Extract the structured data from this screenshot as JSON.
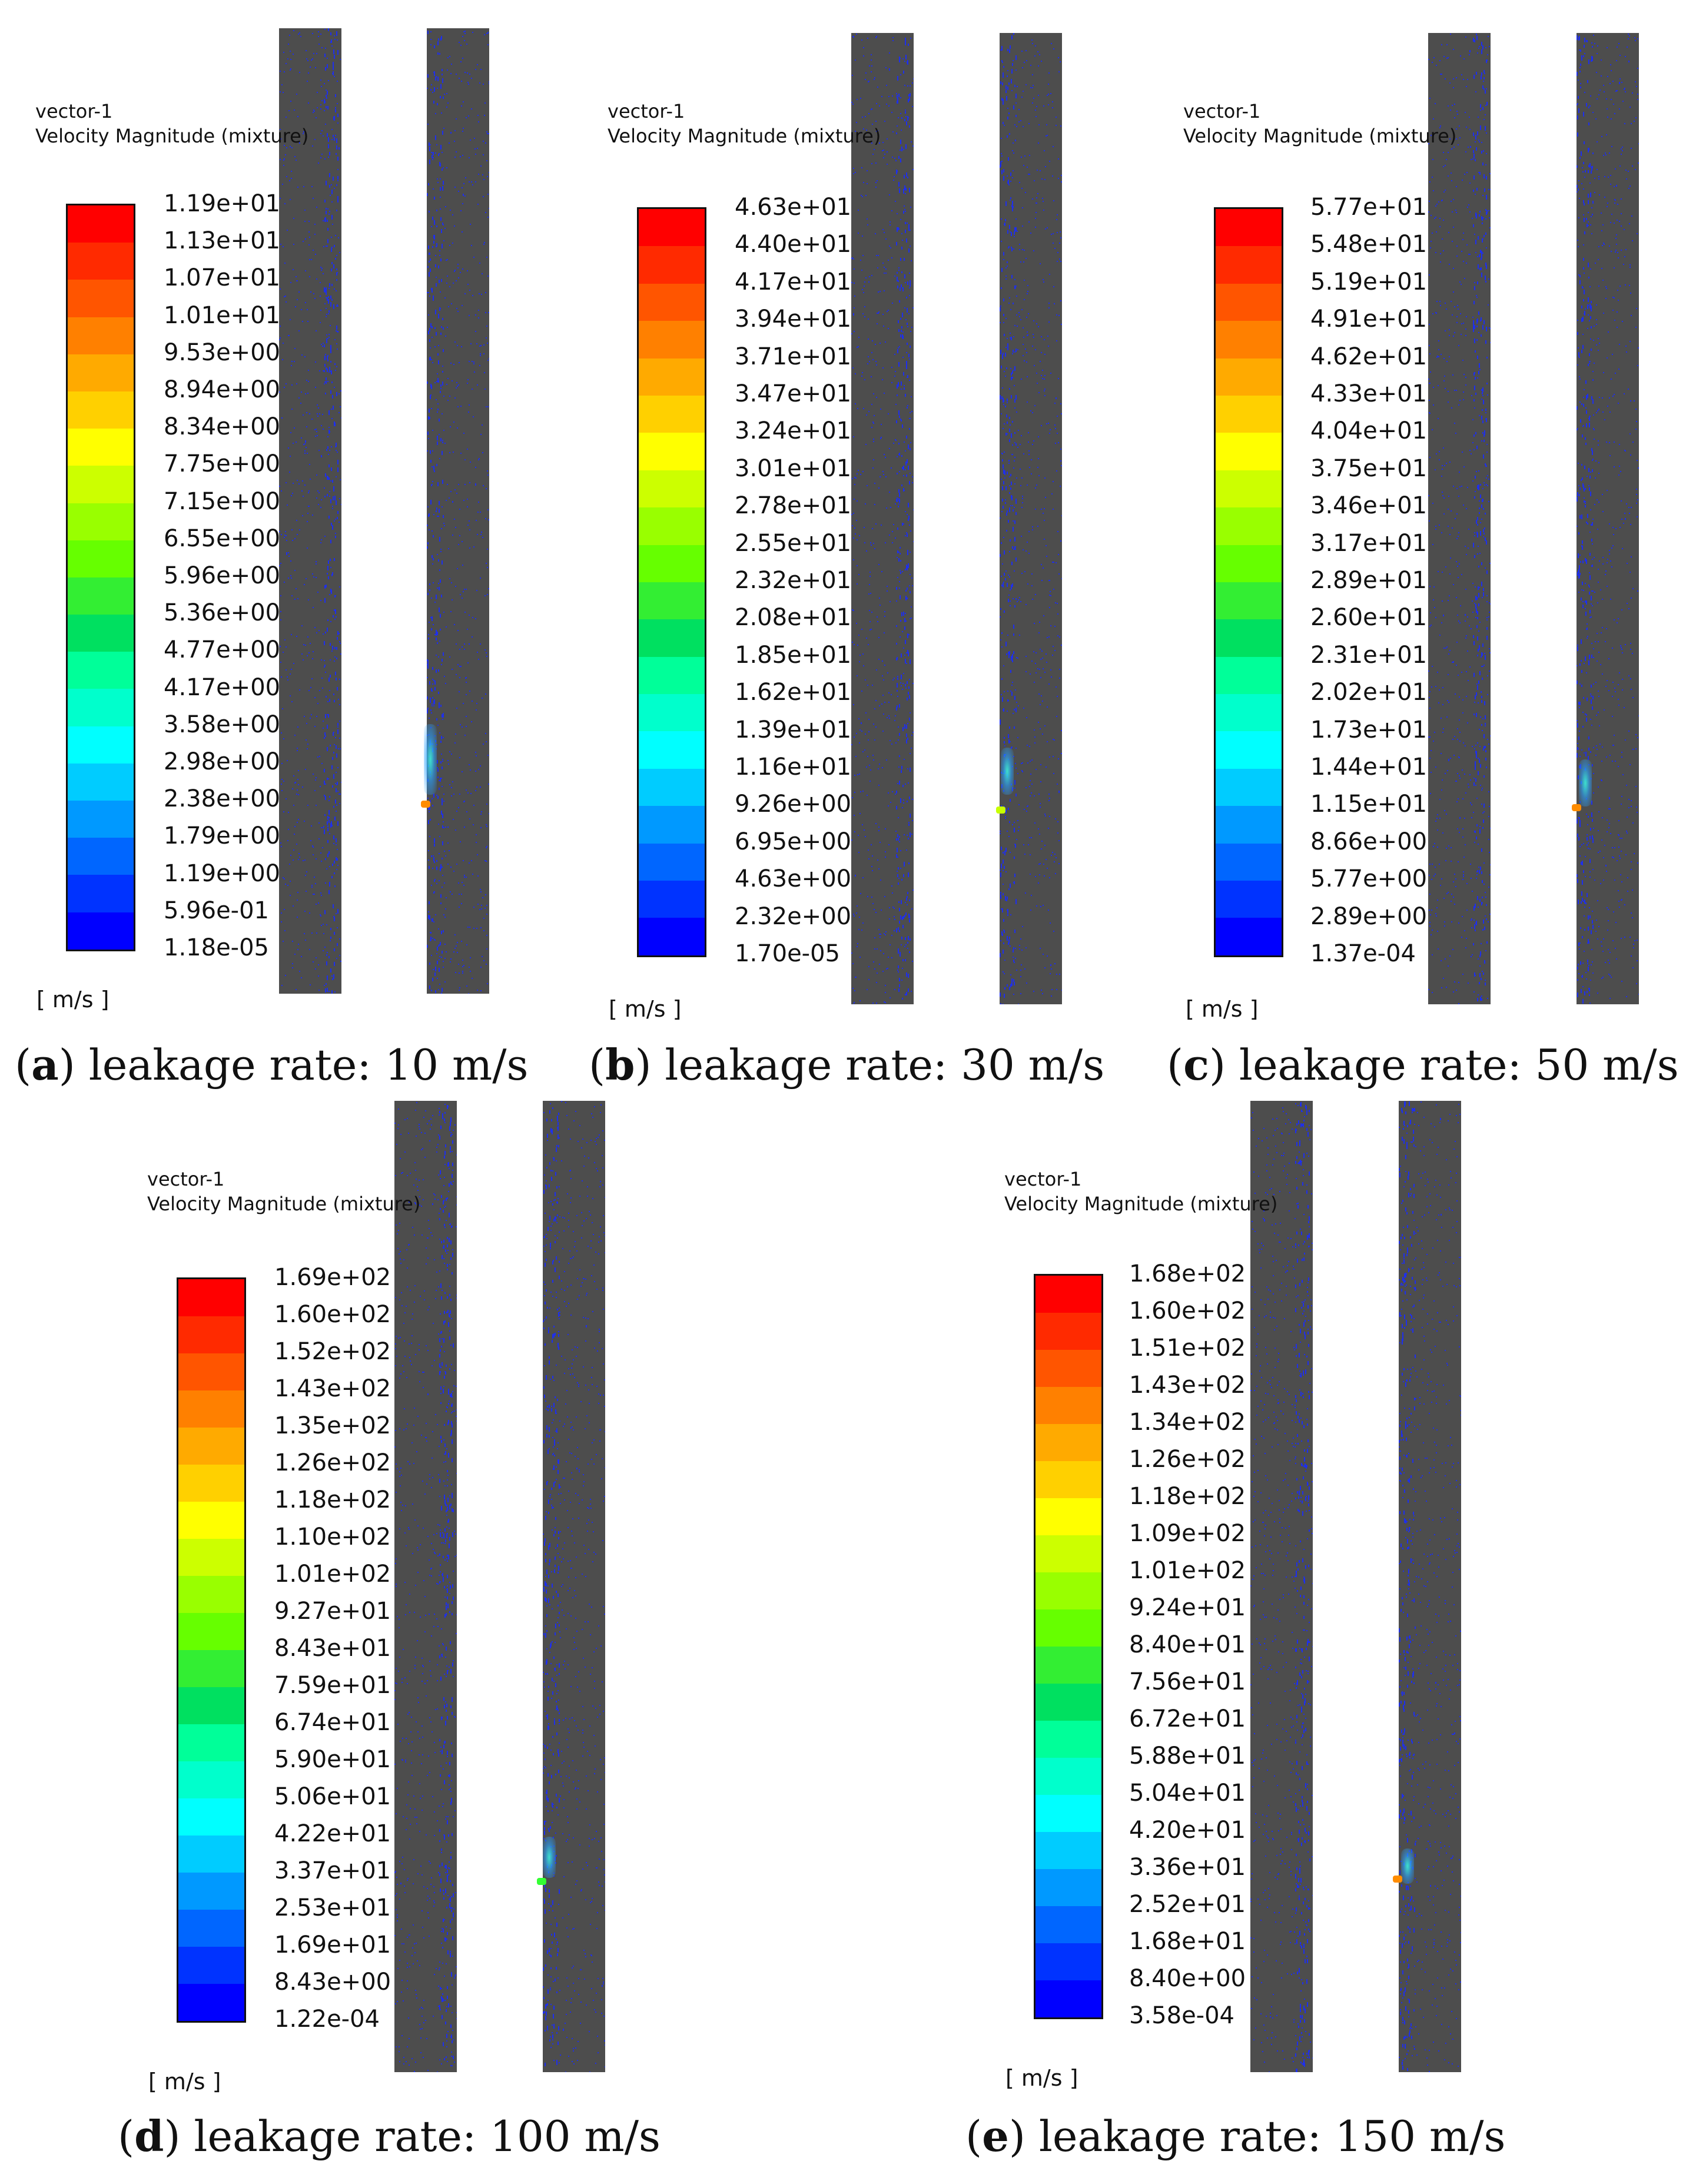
{
  "colors": {
    "wall": "#4d4d4d",
    "vector": "#1a2cff",
    "scale": [
      "#0000ff",
      "#0033ff",
      "#0066ff",
      "#0099ff",
      "#00ccff",
      "#00ffff",
      "#00ffcc",
      "#00ff99",
      "#00e060",
      "#33ee33",
      "#66ff00",
      "#99ff00",
      "#ccff00",
      "#ffff00",
      "#ffd000",
      "#ffaa00",
      "#ff8000",
      "#ff5500",
      "#ff2a00",
      "#ff0000"
    ]
  },
  "panels": [
    {
      "legend_title": "vector-1",
      "legend_subtitle": "Velocity Magnitude (mixture)",
      "unit": "[ m/s ]",
      "ticks": [
        "1.19e+01",
        "1.13e+01",
        "1.07e+01",
        "1.01e+01",
        "9.53e+00",
        "8.94e+00",
        "8.34e+00",
        "7.75e+00",
        "7.15e+00",
        "6.55e+00",
        "5.96e+00",
        "5.36e+00",
        "4.77e+00",
        "4.17e+00",
        "3.58e+00",
        "2.98e+00",
        "2.38e+00",
        "1.79e+00",
        "1.19e+00",
        "5.96e-01",
        "1.18e-05"
      ],
      "caption_letter": "a",
      "caption_text": "leakage rate: 10 m/s",
      "leak_marker_color": "#ff8c00"
    },
    {
      "legend_title": "vector-1",
      "legend_subtitle": "Velocity Magnitude (mixture)",
      "unit": "[ m/s ]",
      "ticks": [
        "4.63e+01",
        "4.40e+01",
        "4.17e+01",
        "3.94e+01",
        "3.71e+01",
        "3.47e+01",
        "3.24e+01",
        "3.01e+01",
        "2.78e+01",
        "2.55e+01",
        "2.32e+01",
        "2.08e+01",
        "1.85e+01",
        "1.62e+01",
        "1.39e+01",
        "1.16e+01",
        "9.26e+00",
        "6.95e+00",
        "4.63e+00",
        "2.32e+00",
        "1.70e-05"
      ],
      "caption_letter": "b",
      "caption_text": "leakage rate: 30 m/s",
      "leak_marker_color": "#c8ff00"
    },
    {
      "legend_title": "vector-1",
      "legend_subtitle": "Velocity Magnitude (mixture)",
      "unit": "[ m/s ]",
      "ticks": [
        "5.77e+01",
        "5.48e+01",
        "5.19e+01",
        "4.91e+01",
        "4.62e+01",
        "4.33e+01",
        "4.04e+01",
        "3.75e+01",
        "3.46e+01",
        "3.17e+01",
        "2.89e+01",
        "2.60e+01",
        "2.31e+01",
        "2.02e+01",
        "1.73e+01",
        "1.44e+01",
        "1.15e+01",
        "8.66e+00",
        "5.77e+00",
        "2.89e+00",
        "1.37e-04"
      ],
      "caption_letter": "c",
      "caption_text": "leakage rate: 50 m/s",
      "leak_marker_color": "#ff8c00"
    },
    {
      "legend_title": "vector-1",
      "legend_subtitle": "Velocity Magnitude (mixture)",
      "unit": "[ m/s ]",
      "ticks": [
        "1.69e+02",
        "1.60e+02",
        "1.52e+02",
        "1.43e+02",
        "1.35e+02",
        "1.26e+02",
        "1.18e+02",
        "1.10e+02",
        "1.01e+02",
        "9.27e+01",
        "8.43e+01",
        "7.59e+01",
        "6.74e+01",
        "5.90e+01",
        "5.06e+01",
        "4.22e+01",
        "3.37e+01",
        "2.53e+01",
        "1.69e+01",
        "8.43e+00",
        "1.22e-04"
      ],
      "caption_letter": "d",
      "caption_text": "leakage rate: 100 m/s",
      "leak_marker_color": "#33ff33"
    },
    {
      "legend_title": "vector-1",
      "legend_subtitle": "Velocity Magnitude (mixture)",
      "unit": "[ m/s ]",
      "ticks": [
        "1.68e+02",
        "1.60e+02",
        "1.51e+02",
        "1.43e+02",
        "1.34e+02",
        "1.26e+02",
        "1.18e+02",
        "1.09e+02",
        "1.01e+02",
        "9.24e+01",
        "8.40e+01",
        "7.56e+01",
        "6.72e+01",
        "5.88e+01",
        "5.04e+01",
        "4.20e+01",
        "3.36e+01",
        "2.52e+01",
        "1.68e+01",
        "8.40e+00",
        "3.58e-04"
      ],
      "caption_letter": "e",
      "caption_text": "leakage rate: 150 m/s",
      "leak_marker_color": "#ff8c00"
    }
  ]
}
